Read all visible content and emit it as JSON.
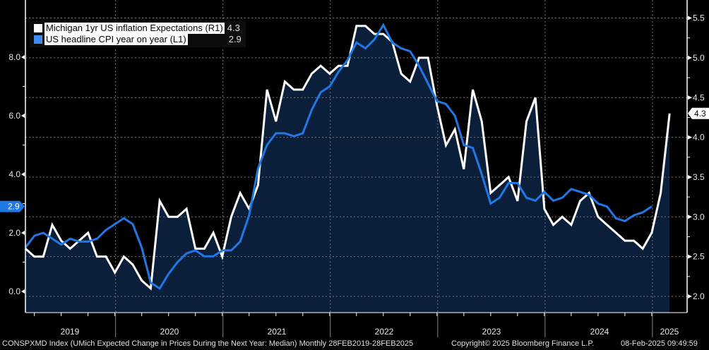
{
  "chart_data": {
    "type": "line",
    "title": "",
    "x_range": [
      "Feb 2019",
      "Feb 2025"
    ],
    "x_tick_labels": [
      "2019",
      "2020",
      "2021",
      "2022",
      "2023",
      "2024",
      "2025"
    ],
    "left_axis": {
      "ticks": [
        "0.0",
        "2.0",
        "4.0",
        "6.0",
        "8.0"
      ],
      "range": [
        -0.7,
        9.9
      ]
    },
    "right_axis": {
      "ticks": [
        "2.0",
        "2.5",
        "3.0",
        "3.5",
        "4.0",
        "4.5",
        "5.0",
        "5.5"
      ],
      "range": [
        1.9,
        5.6
      ]
    },
    "grid": true,
    "legend_position": "top-left",
    "series": [
      {
        "name": "Michigan 1yr US inflation Expectations (R1)",
        "axis": "right",
        "color": "#ffffff",
        "last_value": "4.3",
        "filled": true,
        "values": [
          2.6,
          2.5,
          2.5,
          2.9,
          2.7,
          2.6,
          2.7,
          2.8,
          2.5,
          2.5,
          2.3,
          2.5,
          2.4,
          2.2,
          2.1,
          3.2,
          3.0,
          3.0,
          3.1,
          2.6,
          2.6,
          2.8,
          2.5,
          3.0,
          3.3,
          3.1,
          3.4,
          4.6,
          4.2,
          4.7,
          4.6,
          4.6,
          4.8,
          4.9,
          4.8,
          4.9,
          4.9,
          5.4,
          5.4,
          5.3,
          5.3,
          5.2,
          4.8,
          4.7,
          5.0,
          5.0,
          4.4,
          3.9,
          4.1,
          3.6,
          4.6,
          4.2,
          3.3,
          3.4,
          3.5,
          3.2,
          4.2,
          4.5,
          3.1,
          2.9,
          3.0,
          2.9,
          3.2,
          3.3,
          3.0,
          2.9,
          2.8,
          2.7,
          2.7,
          2.6,
          2.8,
          3.3,
          4.3
        ]
      },
      {
        "name": "US headline CPI year on year (L1)",
        "axis": "left",
        "color": "#1f78e6",
        "last_value": "2.9",
        "values": [
          1.5,
          1.9,
          2.0,
          1.8,
          1.6,
          1.8,
          1.7,
          1.7,
          1.8,
          2.1,
          2.3,
          2.5,
          2.3,
          1.5,
          0.3,
          0.1,
          0.6,
          1.0,
          1.3,
          1.4,
          1.2,
          1.2,
          1.4,
          1.4,
          1.7,
          2.6,
          4.2,
          5.0,
          5.4,
          5.4,
          5.3,
          5.4,
          6.2,
          6.8,
          7.0,
          7.5,
          7.9,
          8.5,
          8.3,
          8.6,
          9.1,
          8.5,
          8.3,
          8.2,
          7.7,
          7.1,
          6.5,
          6.4,
          6.0,
          5.0,
          4.9,
          4.0,
          3.0,
          3.2,
          3.7,
          3.7,
          3.2,
          3.1,
          3.4,
          3.1,
          3.2,
          3.5,
          3.4,
          3.3,
          3.0,
          2.9,
          2.5,
          2.4,
          2.6,
          2.7,
          2.9
        ]
      }
    ],
    "footer": {
      "source": "CONSPXMD Index (UMich Expected Change in Prices During the Next Year: Median)  Monthly 28FEB2019-28FEB2025",
      "copyright": "Copyright© 2025 Bloomberg Finance L.P.",
      "timestamp": "08-Feb-2025 09:49:59"
    }
  }
}
